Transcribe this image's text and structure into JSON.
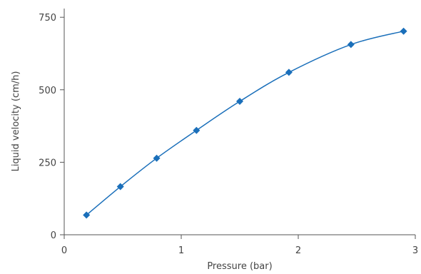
{
  "chart_data": {
    "type": "line",
    "title": "",
    "xlabel": "Pressure (bar)",
    "ylabel": "Liquid velocity (cm/h)",
    "xlim": [
      0,
      3
    ],
    "ylim": [
      0,
      780
    ],
    "x_ticks": [
      0,
      1,
      2,
      3
    ],
    "x_tick_labels": [
      "0",
      "1",
      "2",
      "3"
    ],
    "y_ticks": [
      0,
      250,
      500,
      750
    ],
    "y_tick_labels": [
      "0",
      "250",
      "500",
      "750"
    ],
    "grid": false,
    "legend": "none",
    "series": [
      {
        "color": "#1a6fba",
        "marker": "diamond",
        "x": [
          0.19,
          0.48,
          0.79,
          1.13,
          1.5,
          1.92,
          2.45,
          2.9
        ],
        "y": [
          68,
          166,
          264,
          360,
          460,
          560,
          656,
          702
        ]
      }
    ]
  }
}
